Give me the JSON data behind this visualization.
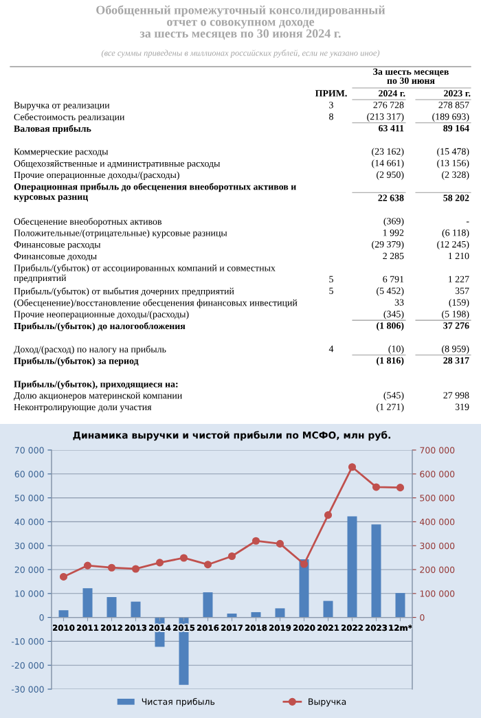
{
  "chart_data": [
    {
      "type": "other",
      "title": "Обобщенный промежуточный консолидированный\nотчет о совокупном доходе\nза шесть месяцев по 30 июня 2024 г.",
      "subtitle": "(все суммы приведены в миллионах российских рублей, если не указано иное)",
      "xlabel": "За шесть месяцев\nпо 30 июня",
      "categories": [
        "ПРИМ.",
        "2024 г.",
        "2023 г."
      ],
      "y_categories": [
        "Выручка от реализации",
        "Себестоимость реализации",
        "Валовая прибыль",
        "Коммерческие расходы",
        "Общехозяйственные и административные расходы",
        "Прочие операционные доходы/(расходы)",
        "Операционная прибыль до обесценения внеоборотных активов и\nкурсовых разниц",
        "Обесценение внеоборотных активов",
        "Положительные/(отрицательные) курсовые разницы",
        "Финансовые расходы",
        "Финансовые доходы",
        "Прибыль/(убыток) от ассоциированных компаний и совместных\nпредприятий",
        "Прибыль/(убыток) от выбытия дочерних предприятий",
        "(Обесценение)/восстановление обесценения финансовых инвестиций",
        "Прочие неоперационные доходы/(расходы)",
        "Прибыль/(убыток) до налогообложения",
        "Доход/(расход) по налогу на прибыль",
        "Прибыль/(убыток) за период",
        "Прибыль/(убыток), приходящиеся на:",
        "Долю акционеров материнской компании",
        "Неконтролирующие доли участия"
      ],
      "cell_labels": [
        [
          "3",
          "276 728",
          "278 857"
        ],
        [
          "8",
          "(213 317)",
          "(189 693)"
        ],
        [
          null,
          "63 411",
          "89 164"
        ],
        [
          null,
          "(23 162)",
          "(15 478)"
        ],
        [
          null,
          "(14 661)",
          "(13 156)"
        ],
        [
          null,
          "(2 950)",
          "(2 328)"
        ],
        [
          null,
          "22 638",
          "58 202"
        ],
        [
          null,
          "(369)",
          "-"
        ],
        [
          null,
          "1 992",
          "(6 118)"
        ],
        [
          null,
          "(29 379)",
          "(12 245)"
        ],
        [
          null,
          "2 285",
          "1 210"
        ],
        [
          "5",
          "6 791",
          "1 227"
        ],
        [
          "5",
          "(5 452)",
          "357"
        ],
        [
          null,
          "33",
          "(159)"
        ],
        [
          null,
          "(345)",
          "(5 198)"
        ],
        [
          null,
          "(1 806)",
          "37 276"
        ],
        [
          "4",
          "(10)",
          "(8 959)"
        ],
        [
          null,
          "(1 816)",
          "28 317"
        ],
        [
          null,
          null,
          null
        ],
        [
          null,
          "(545)",
          "27 998"
        ],
        [
          null,
          "(1 271)",
          "319"
        ]
      ]
    },
    {
      "type": "bar",
      "title": "Динамика выручки и чистой прибыли по МСФО, млн руб.",
      "categories": [
        "2010",
        "2011",
        "2012",
        "2013",
        "2014",
        "2015",
        "2016",
        "2017",
        "2018",
        "2019",
        "2020",
        "2021",
        "2022",
        "2023",
        "12m*"
      ],
      "series": [
        {
          "name": "Чистая прибыль",
          "type": "bar",
          "color": "#4f81bd",
          "values": [
            3000,
            12200,
            8500,
            6600,
            -12300,
            -28200,
            10500,
            1600,
            2200,
            3800,
            24300,
            6900,
            42300,
            38900,
            10200
          ]
        },
        {
          "name": "Выручка",
          "type": "line",
          "axis": "y2",
          "color": "#c0504d",
          "marker": "circle",
          "values": [
            170000,
            217000,
            208000,
            203000,
            229000,
            249000,
            221000,
            256000,
            320000,
            308000,
            223000,
            428000,
            629000,
            545000,
            543000
          ]
        }
      ],
      "ylim": [
        -30000,
        70000
      ],
      "yticks": [
        {
          "value": -30000,
          "label": "-30 000"
        },
        {
          "value": -20000,
          "label": "-20 000"
        },
        {
          "value": -10000,
          "label": "-10 000"
        },
        0,
        {
          "value": 10000,
          "label": "10 000"
        },
        {
          "value": 20000,
          "label": "20 000"
        },
        {
          "value": 30000,
          "label": "30 000"
        },
        {
          "value": 40000,
          "label": "40 000"
        },
        {
          "value": 50000,
          "label": "50 000"
        },
        {
          "value": 60000,
          "label": "60 000"
        },
        {
          "value": 70000,
          "label": "70 000"
        }
      ],
      "y2lim": [
        -300000,
        700000
      ],
      "y2ticks": [
        0,
        {
          "value": 100000,
          "label": "100 000"
        },
        {
          "value": 200000,
          "label": "200 000"
        },
        {
          "value": 300000,
          "label": "300 000"
        },
        {
          "value": 400000,
          "label": "400 000"
        },
        {
          "value": 500000,
          "label": "500 000"
        },
        {
          "value": 600000,
          "label": "600 000"
        },
        {
          "value": 700000,
          "label": "700 000"
        }
      ],
      "grid": "y",
      "legend": "bottom"
    }
  ]
}
